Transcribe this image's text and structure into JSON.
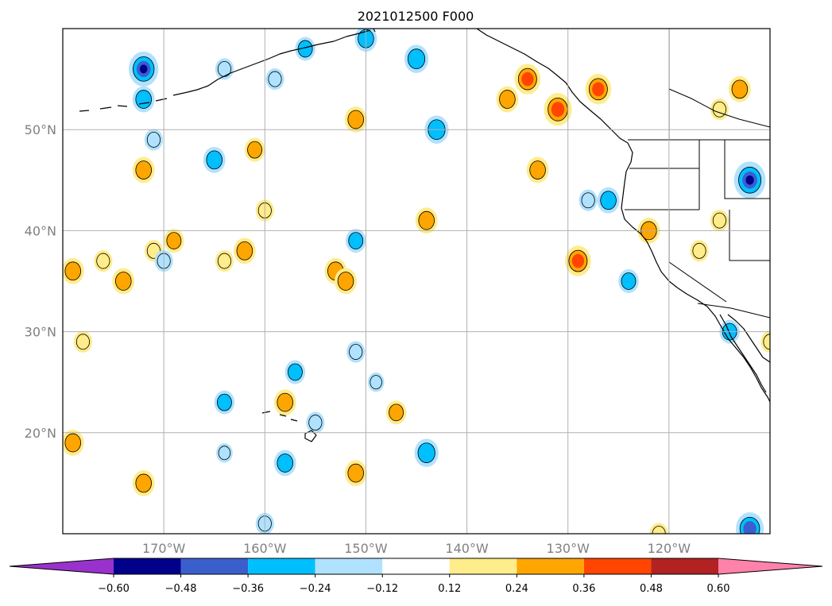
{
  "title": "2021012500 F000",
  "map": {
    "lon_range": [
      -180,
      -110
    ],
    "lat_range": [
      10,
      60
    ],
    "lat_ticks": [
      {
        "value": 50,
        "label": "50°N"
      },
      {
        "value": 40,
        "label": "40°N"
      },
      {
        "value": 30,
        "label": "30°N"
      },
      {
        "value": 20,
        "label": "20°N"
      }
    ],
    "lon_ticks": [
      {
        "value": -170,
        "label": "170°W"
      },
      {
        "value": -160,
        "label": "160°W"
      },
      {
        "value": -150,
        "label": "150°W"
      },
      {
        "value": -140,
        "label": "140°W"
      },
      {
        "value": -130,
        "label": "130°W"
      },
      {
        "value": -120,
        "label": "120°W"
      }
    ],
    "grid": true
  },
  "colorbar": {
    "extend": "both",
    "colors": [
      "#9932cc",
      "#00008b",
      "#3a5fcd",
      "#00bfff",
      "#b0e2ff",
      "#ffffff",
      "#ffec8b",
      "#ffa500",
      "#ff4500",
      "#b22222",
      "#ff82ab"
    ],
    "tick_values": [
      -0.6,
      -0.48,
      -0.36,
      -0.24,
      -0.12,
      0.12,
      0.24,
      0.36,
      0.48,
      0.6
    ],
    "tick_labels": [
      "−0.60",
      "−0.48",
      "−0.36",
      "−0.24",
      "−0.12",
      "0.12",
      "0.24",
      "0.36",
      "0.48",
      "0.60"
    ]
  },
  "chart_data": {
    "type": "contour-map",
    "title": "2021012500 F000",
    "features": [
      {
        "lon": -172,
        "lat": 56,
        "level": -0.5
      },
      {
        "lon": -172,
        "lat": 53,
        "level": -0.3
      },
      {
        "lon": -164,
        "lat": 56,
        "level": -0.2
      },
      {
        "lon": -159,
        "lat": 55,
        "level": -0.2
      },
      {
        "lon": -156,
        "lat": 58,
        "level": -0.25
      },
      {
        "lon": -150,
        "lat": 59,
        "level": -0.3
      },
      {
        "lon": -145,
        "lat": 57,
        "level": -0.35
      },
      {
        "lon": -151,
        "lat": 51,
        "level": 0.3
      },
      {
        "lon": -143,
        "lat": 50,
        "level": -0.35
      },
      {
        "lon": -136,
        "lat": 53,
        "level": 0.3
      },
      {
        "lon": -134,
        "lat": 55,
        "level": 0.4
      },
      {
        "lon": -131,
        "lat": 52,
        "level": 0.45
      },
      {
        "lon": -127,
        "lat": 54,
        "level": 0.4
      },
      {
        "lon": -113,
        "lat": 54,
        "level": 0.3
      },
      {
        "lon": -115,
        "lat": 52,
        "level": 0.2
      },
      {
        "lon": -172,
        "lat": 46,
        "level": 0.3
      },
      {
        "lon": -171,
        "lat": 49,
        "level": -0.2
      },
      {
        "lon": -165,
        "lat": 47,
        "level": -0.3
      },
      {
        "lon": -161,
        "lat": 48,
        "level": 0.25
      },
      {
        "lon": -160,
        "lat": 42,
        "level": 0.2
      },
      {
        "lon": -133,
        "lat": 46,
        "level": 0.3
      },
      {
        "lon": -126,
        "lat": 43,
        "level": -0.3
      },
      {
        "lon": -128,
        "lat": 43,
        "level": -0.2
      },
      {
        "lon": -112,
        "lat": 45,
        "level": -0.55
      },
      {
        "lon": -169,
        "lat": 39,
        "level": 0.25
      },
      {
        "lon": -171,
        "lat": 38,
        "level": 0.2
      },
      {
        "lon": -170,
        "lat": 37,
        "level": -0.2
      },
      {
        "lon": -164,
        "lat": 37,
        "level": 0.2
      },
      {
        "lon": -162,
        "lat": 38,
        "level": 0.3
      },
      {
        "lon": -151,
        "lat": 39,
        "level": -0.25
      },
      {
        "lon": -144,
        "lat": 41,
        "level": 0.3
      },
      {
        "lon": -129,
        "lat": 37,
        "level": 0.4
      },
      {
        "lon": -122,
        "lat": 40,
        "level": 0.3
      },
      {
        "lon": -117,
        "lat": 38,
        "level": 0.2
      },
      {
        "lon": -115,
        "lat": 41,
        "level": 0.2
      },
      {
        "lon": -179,
        "lat": 36,
        "level": 0.3
      },
      {
        "lon": -176,
        "lat": 37,
        "level": 0.2
      },
      {
        "lon": -174,
        "lat": 35,
        "level": 0.3
      },
      {
        "lon": -153,
        "lat": 36,
        "level": 0.3
      },
      {
        "lon": -152,
        "lat": 35,
        "level": 0.3
      },
      {
        "lon": -124,
        "lat": 35,
        "level": -0.25
      },
      {
        "lon": -178,
        "lat": 29,
        "level": 0.2
      },
      {
        "lon": -151,
        "lat": 28,
        "level": -0.2
      },
      {
        "lon": -114,
        "lat": 30,
        "level": -0.25
      },
      {
        "lon": -110,
        "lat": 29,
        "level": 0.2
      },
      {
        "lon": -157,
        "lat": 26,
        "level": -0.25
      },
      {
        "lon": -149,
        "lat": 25,
        "level": -0.15
      },
      {
        "lon": -158,
        "lat": 23,
        "level": 0.3
      },
      {
        "lon": -164,
        "lat": 23,
        "level": -0.25
      },
      {
        "lon": -147,
        "lat": 22,
        "level": 0.25
      },
      {
        "lon": -155,
        "lat": 21,
        "level": -0.2
      },
      {
        "lon": -179,
        "lat": 19,
        "level": 0.3
      },
      {
        "lon": -144,
        "lat": 18,
        "level": -0.35
      },
      {
        "lon": -158,
        "lat": 17,
        "level": -0.3
      },
      {
        "lon": -164,
        "lat": 18,
        "level": -0.15
      },
      {
        "lon": -151,
        "lat": 16,
        "level": 0.3
      },
      {
        "lon": -172,
        "lat": 15,
        "level": 0.3
      },
      {
        "lon": -160,
        "lat": 11,
        "level": -0.2
      },
      {
        "lon": -112,
        "lat": 10.5,
        "level": -0.45
      },
      {
        "lon": -121,
        "lat": 10,
        "level": 0.2
      }
    ]
  }
}
